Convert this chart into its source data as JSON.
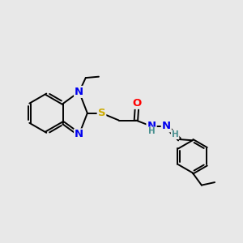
{
  "bg_color": "#e8e8e8",
  "bond_color": "#000000",
  "bond_width": 1.5,
  "atom_colors": {
    "N": "#0000ee",
    "S": "#ccaa00",
    "O": "#ff0000",
    "H_cyan": "#4a9090",
    "C": "#000000"
  }
}
